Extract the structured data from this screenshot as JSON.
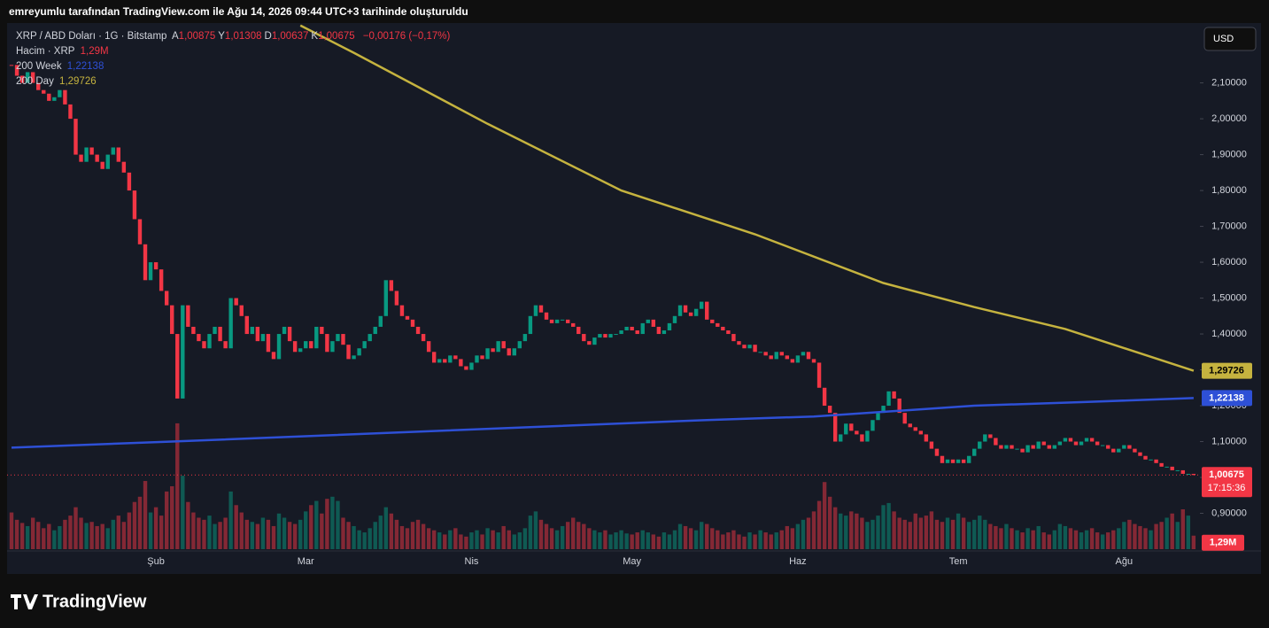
{
  "header": "emreyumlu tarafından TradingView.com ile Ağu 14, 2026 09:44 UTC+3 tarihinde oluşturuldu",
  "logo": "TradingView",
  "chart_data": {
    "type": "candlestick",
    "legend": {
      "symbol": "XRP / ABD Doları · 1G · Bitstamp",
      "ohlc": [
        {
          "key": "A",
          "value": "1,00875"
        },
        {
          "key": "Y",
          "value": "1,01308"
        },
        {
          "key": "D",
          "value": "1,00637"
        },
        {
          "key": "K",
          "value": "1,00675"
        }
      ],
      "change": "−0,00176 (−0,17%)",
      "volume": {
        "name": "Hacim · XRP",
        "value": "1,29M"
      }
    },
    "currency": "USD",
    "price_tag": "1,00675",
    "countdown": "17:15:36",
    "volume_tag": "1,29M",
    "up_color": "#089981",
    "down_color": "#f23645",
    "categories": [
      null,
      null,
      null,
      null,
      null,
      null,
      null,
      null,
      null,
      null,
      null,
      null,
      null,
      null,
      null,
      null,
      null,
      null,
      null,
      null,
      null,
      null,
      null,
      null,
      null,
      null,
      null,
      "Şub",
      null,
      null,
      null,
      null,
      null,
      null,
      null,
      null,
      null,
      null,
      null,
      null,
      null,
      null,
      null,
      null,
      null,
      null,
      null,
      null,
      null,
      null,
      null,
      null,
      null,
      null,
      null,
      "Mar",
      null,
      null,
      null,
      null,
      null,
      null,
      null,
      null,
      null,
      null,
      null,
      null,
      null,
      null,
      null,
      null,
      null,
      null,
      null,
      null,
      null,
      null,
      null,
      null,
      null,
      null,
      null,
      null,
      null,
      null,
      "Nis",
      null,
      null,
      null,
      null,
      null,
      null,
      null,
      null,
      null,
      null,
      null,
      null,
      null,
      null,
      null,
      null,
      null,
      null,
      null,
      null,
      null,
      null,
      null,
      null,
      null,
      null,
      null,
      null,
      null,
      "May",
      null,
      null,
      null,
      null,
      null,
      null,
      null,
      null,
      null,
      null,
      null,
      null,
      null,
      null,
      null,
      null,
      null,
      null,
      null,
      null,
      null,
      null,
      null,
      null,
      null,
      null,
      null,
      null,
      null,
      null,
      "Haz",
      null,
      null,
      null,
      null,
      null,
      null,
      null,
      null,
      null,
      null,
      null,
      null,
      null,
      null,
      null,
      null,
      null,
      null,
      null,
      null,
      null,
      null,
      null,
      null,
      null,
      null,
      null,
      null,
      null,
      "Tem",
      null,
      null,
      null,
      null,
      null,
      null,
      null,
      null,
      null,
      null,
      null,
      null,
      null,
      null,
      null,
      null,
      null,
      null,
      null,
      null,
      null,
      null,
      null,
      null,
      null,
      null,
      null,
      null,
      null,
      null,
      "Ağu",
      null,
      null,
      null,
      null,
      null,
      null,
      null,
      null,
      null,
      null,
      null,
      null,
      null
    ],
    "close": [
      2.15,
      2.12,
      2.1,
      2.13,
      2.1,
      2.08,
      2.07,
      2.05,
      2.06,
      2.08,
      2.04,
      2.0,
      1.9,
      1.88,
      1.92,
      1.9,
      1.88,
      1.86,
      1.9,
      1.92,
      1.88,
      1.85,
      1.8,
      1.72,
      1.65,
      1.55,
      1.6,
      1.58,
      1.52,
      1.48,
      1.4,
      1.22,
      1.48,
      1.42,
      1.4,
      1.38,
      1.36,
      1.4,
      1.42,
      1.38,
      1.36,
      1.5,
      1.48,
      1.45,
      1.4,
      1.42,
      1.38,
      1.4,
      1.35,
      1.33,
      1.4,
      1.42,
      1.38,
      1.35,
      1.36,
      1.38,
      1.36,
      1.42,
      1.4,
      1.35,
      1.38,
      1.4,
      1.37,
      1.33,
      1.34,
      1.36,
      1.38,
      1.4,
      1.42,
      1.45,
      1.55,
      1.52,
      1.48,
      1.45,
      1.44,
      1.42,
      1.4,
      1.38,
      1.35,
      1.32,
      1.33,
      1.32,
      1.34,
      1.33,
      1.31,
      1.3,
      1.32,
      1.34,
      1.33,
      1.36,
      1.35,
      1.38,
      1.36,
      1.34,
      1.36,
      1.38,
      1.4,
      1.45,
      1.48,
      1.46,
      1.44,
      1.43,
      1.44,
      1.44,
      1.43,
      1.42,
      1.4,
      1.38,
      1.37,
      1.39,
      1.4,
      1.39,
      1.4,
      1.4,
      1.41,
      1.42,
      1.41,
      1.4,
      1.43,
      1.44,
      1.42,
      1.4,
      1.41,
      1.43,
      1.45,
      1.48,
      1.46,
      1.45,
      1.47,
      1.49,
      1.44,
      1.43,
      1.42,
      1.41,
      1.4,
      1.38,
      1.37,
      1.36,
      1.37,
      1.35,
      1.35,
      1.34,
      1.33,
      1.35,
      1.34,
      1.33,
      1.32,
      1.34,
      1.35,
      1.33,
      1.32,
      1.25,
      1.2,
      1.18,
      1.1,
      1.12,
      1.15,
      1.13,
      1.12,
      1.1,
      1.13,
      1.16,
      1.18,
      1.2,
      1.24,
      1.22,
      1.18,
      1.15,
      1.14,
      1.13,
      1.12,
      1.1,
      1.08,
      1.06,
      1.04,
      1.05,
      1.04,
      1.05,
      1.04,
      1.06,
      1.08,
      1.1,
      1.12,
      1.11,
      1.09,
      1.08,
      1.09,
      1.08,
      1.08,
      1.07,
      1.09,
      1.08,
      1.1,
      1.09,
      1.08,
      1.09,
      1.1,
      1.11,
      1.1,
      1.09,
      1.1,
      1.11,
      1.1,
      1.09,
      1.09,
      1.08,
      1.07,
      1.08,
      1.09,
      1.08,
      1.07,
      1.06,
      1.05,
      1.05,
      1.04,
      1.03,
      1.03,
      1.02,
      1.02,
      1.01,
      1.01,
      1.00675
    ],
    "volume": [
      3.5,
      2.8,
      2.5,
      2.2,
      3.0,
      2.6,
      2.0,
      2.4,
      1.8,
      2.2,
      2.8,
      3.2,
      4.0,
      3.0,
      2.5,
      2.6,
      2.2,
      2.4,
      2.0,
      2.8,
      3.2,
      2.6,
      3.5,
      4.5,
      5.0,
      6.5,
      3.5,
      4.0,
      3.2,
      5.5,
      6.0,
      12.0,
      7.0,
      4.5,
      3.5,
      3.0,
      2.8,
      3.2,
      2.4,
      2.6,
      3.0,
      5.5,
      4.2,
      3.5,
      2.8,
      2.6,
      2.4,
      3.0,
      2.8,
      2.2,
      3.4,
      3.0,
      2.6,
      2.4,
      2.8,
      3.6,
      4.2,
      4.6,
      3.4,
      4.8,
      5.0,
      4.6,
      3.0,
      2.6,
      2.2,
      1.8,
      1.6,
      2.0,
      2.6,
      3.2,
      4.0,
      3.4,
      2.8,
      2.2,
      2.0,
      2.6,
      2.8,
      2.4,
      2.0,
      1.8,
      1.6,
      1.4,
      1.8,
      2.0,
      1.4,
      1.2,
      1.6,
      1.8,
      1.4,
      2.0,
      1.8,
      1.6,
      2.2,
      1.8,
      1.4,
      1.6,
      2.0,
      3.2,
      3.6,
      2.8,
      2.4,
      2.0,
      1.8,
      2.2,
      2.6,
      3.0,
      2.6,
      2.4,
      2.0,
      1.8,
      1.6,
      1.8,
      1.4,
      1.6,
      1.8,
      1.5,
      1.4,
      1.6,
      1.8,
      1.6,
      1.4,
      1.2,
      1.6,
      1.4,
      1.8,
      2.4,
      2.2,
      2.0,
      1.8,
      2.6,
      2.4,
      2.0,
      1.8,
      1.4,
      1.6,
      1.8,
      1.4,
      1.2,
      1.6,
      1.4,
      1.8,
      1.6,
      1.4,
      1.6,
      1.8,
      2.2,
      2.0,
      2.4,
      2.8,
      3.0,
      3.6,
      4.6,
      6.4,
      5.0,
      4.0,
      3.4,
      3.2,
      3.6,
      3.4,
      3.0,
      2.6,
      2.8,
      3.2,
      4.2,
      4.4,
      3.6,
      3.0,
      2.8,
      2.6,
      3.4,
      3.0,
      3.2,
      3.6,
      2.8,
      2.6,
      3.0,
      2.8,
      3.4,
      3.0,
      2.6,
      2.8,
      3.2,
      2.8,
      2.4,
      2.2,
      2.0,
      2.4,
      2.0,
      1.8,
      1.6,
      2.0,
      1.8,
      2.2,
      1.6,
      1.4,
      1.8,
      2.4,
      2.2,
      2.0,
      1.8,
      1.6,
      1.8,
      2.0,
      1.6,
      1.4,
      1.6,
      1.8,
      2.0,
      2.6,
      2.8,
      2.4,
      2.2,
      2.0,
      1.8,
      2.4,
      2.6,
      3.0,
      3.4,
      2.6,
      3.8,
      3.2,
      1.29
    ],
    "volume_lim": [
      0,
      50
    ],
    "series": [
      {
        "name": "200 Week",
        "color": "#2e50d6",
        "legend_value": "1,22138",
        "tag": "1,22138",
        "x": [
          0,
          30,
          80,
          130,
          150,
          170,
          180,
          200,
          221
        ],
        "values": [
          1.083,
          1.1,
          1.13,
          1.16,
          1.17,
          1.19,
          1.2,
          1.21,
          1.22138
        ]
      },
      {
        "name": "200 Day",
        "color": "#c5b33f",
        "legend_value": "1,29726",
        "tag": "1,29726",
        "x": [
          54,
          64,
          89,
          114,
          139,
          163,
          180,
          197,
          221
        ],
        "values": [
          2.26,
          2.184,
          1.986,
          1.8,
          1.678,
          1.542,
          1.475,
          1.414,
          1.29726
        ]
      }
    ],
    "ylim": [
      0.8,
      2.262
    ],
    "yticks": [
      {
        "value": 0.9,
        "label": "0,90000"
      },
      {
        "value": 1.0,
        "label": "1,00000"
      },
      {
        "value": 1.1,
        "label": "1,10000"
      },
      {
        "value": 1.2,
        "label": "1,20000"
      },
      {
        "value": 1.3,
        "label": "1,30000"
      },
      {
        "value": 1.4,
        "label": "1,40000"
      },
      {
        "value": 1.5,
        "label": "1,50000"
      },
      {
        "value": 1.6,
        "label": "1,60000"
      },
      {
        "value": 1.7,
        "label": "1,70000"
      },
      {
        "value": 1.8,
        "label": "1,80000"
      },
      {
        "value": 1.9,
        "label": "1,90000"
      },
      {
        "value": 2.0,
        "label": "2,00000"
      },
      {
        "value": 2.1,
        "label": "2,10000"
      }
    ],
    "grid": false
  }
}
